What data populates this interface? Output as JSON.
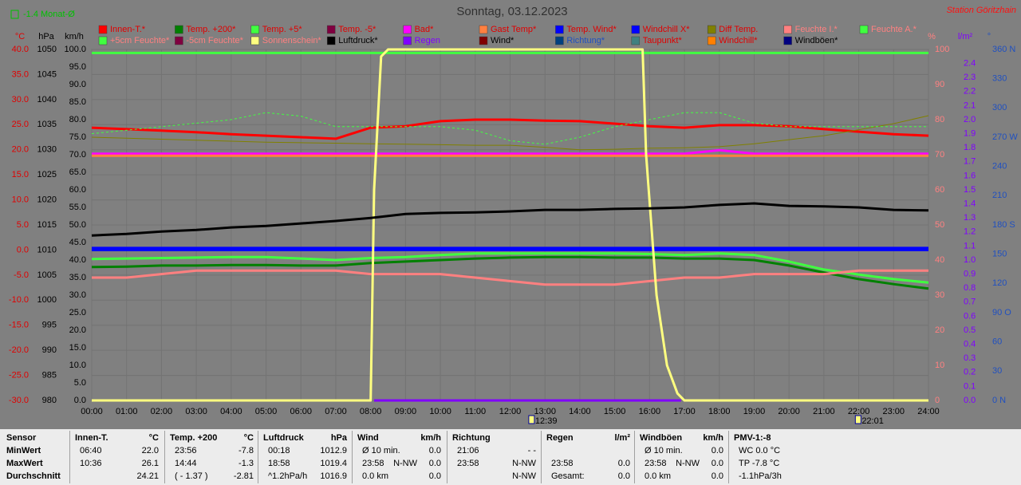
{
  "chart_data": {
    "type": "line",
    "title": "Sonntag, 03.12.2023",
    "station": "Station Göritzhain",
    "month_note": "-1.4 Monat-Ø",
    "grid": true,
    "xlim": [
      0,
      24
    ],
    "xticks": [
      {
        "value": 0,
        "label": "00:00"
      },
      {
        "value": 1,
        "label": "01:00"
      },
      {
        "value": 2,
        "label": "02:00"
      },
      {
        "value": 3,
        "label": "03:00"
      },
      {
        "value": 4,
        "label": "04:00"
      },
      {
        "value": 5,
        "label": "05:00"
      },
      {
        "value": 6,
        "label": "06:00"
      },
      {
        "value": 7,
        "label": "07:00"
      },
      {
        "value": 8,
        "label": "08:00"
      },
      {
        "value": 9,
        "label": "09:00"
      },
      {
        "value": 10,
        "label": "10:00"
      },
      {
        "value": 11,
        "label": "11:00"
      },
      {
        "value": 12,
        "label": "12:00"
      },
      {
        "value": 13,
        "label": "13:00"
      },
      {
        "value": 14,
        "label": "14:00"
      },
      {
        "value": 15,
        "label": "15:00"
      },
      {
        "value": 16,
        "label": "16:00"
      },
      {
        "value": 17,
        "label": "17:00"
      },
      {
        "value": 18,
        "label": "18:00"
      },
      {
        "value": 19,
        "label": "19:00"
      },
      {
        "value": 20,
        "label": "20:00"
      },
      {
        "value": 21,
        "label": "21:00"
      },
      {
        "value": 22,
        "label": "22:00"
      },
      {
        "value": 23,
        "label": "23:00"
      },
      {
        "value": 24,
        "label": "24:00"
      }
    ],
    "ylabel": "°C",
    "ylim": [
      -30,
      40
    ],
    "yticks": [
      {
        "value": 40,
        "label": "40.0"
      },
      {
        "value": 35,
        "label": "35.0"
      },
      {
        "value": 30,
        "label": "30.0"
      },
      {
        "value": 25,
        "label": "25.0"
      },
      {
        "value": 20,
        "label": "20.0"
      },
      {
        "value": 15,
        "label": "15.0"
      },
      {
        "value": 10,
        "label": "10.0"
      },
      {
        "value": 5,
        "label": "5.0"
      },
      {
        "value": 0,
        "label": "0.0"
      },
      {
        "value": -5,
        "label": "-5.0"
      },
      {
        "value": -10,
        "label": "-10.0"
      },
      {
        "value": -15,
        "label": "-15.0"
      },
      {
        "value": -20,
        "label": "-20.0"
      },
      {
        "value": -25,
        "label": "-25.0"
      },
      {
        "value": -30,
        "label": "-30.0"
      }
    ],
    "y2label": "hPa",
    "y2lim": [
      980,
      1050
    ],
    "y2ticks": [
      1050,
      1045,
      1040,
      1035,
      1030,
      1025,
      1020,
      1015,
      1010,
      1005,
      1000,
      995,
      990,
      985,
      980
    ],
    "y3label": "km/h",
    "y3lim": [
      0,
      100
    ],
    "y3ticks": [
      {
        "value": 100,
        "label": "100.0"
      },
      {
        "value": 95,
        "label": "95.0"
      },
      {
        "value": 90,
        "label": "90.0"
      },
      {
        "value": 85,
        "label": "85.0"
      },
      {
        "value": 80,
        "label": "80.0"
      },
      {
        "value": 75,
        "label": "75.0"
      },
      {
        "value": 70,
        "label": "70.0"
      },
      {
        "value": 65,
        "label": "65.0"
      },
      {
        "value": 60,
        "label": "60.0"
      },
      {
        "value": 55,
        "label": "55.0"
      },
      {
        "value": 50,
        "label": "50.0"
      },
      {
        "value": 45,
        "label": "45.0"
      },
      {
        "value": 40,
        "label": "40.0"
      },
      {
        "value": 35,
        "label": "35.0"
      },
      {
        "value": 30,
        "label": "30.0"
      },
      {
        "value": 25,
        "label": "25.0"
      },
      {
        "value": 20,
        "label": "20.0"
      },
      {
        "value": 15,
        "label": "15.0"
      },
      {
        "value": 10,
        "label": "10.0"
      },
      {
        "value": 5,
        "label": "5.0"
      },
      {
        "value": 0,
        "label": "0.0"
      }
    ],
    "y4label": "%",
    "y4lim": [
      0,
      100
    ],
    "y4ticks": [
      100,
      90,
      80,
      70,
      60,
      50,
      40,
      30,
      20,
      10,
      0
    ],
    "y5label": "l/m²",
    "y5lim": [
      0,
      2.5
    ],
    "y5ticks": [
      2.4,
      2.3,
      2.2,
      2.1,
      {
        "value": 2,
        "label": "2.0"
      },
      1.9,
      1.8,
      1.7,
      1.6,
      1.5,
      1.4,
      1.3,
      1.2,
      1.1,
      {
        "value": 1,
        "label": "1.0"
      },
      0.9,
      0.8,
      0.7,
      0.6,
      0.5,
      0.4,
      0.3,
      0.2,
      0.1,
      {
        "value": 0,
        "label": "0.0"
      }
    ],
    "y6label": "°",
    "y6lim": [
      0,
      360
    ],
    "y6ticks": [
      {
        "value": 360,
        "label": "360 N"
      },
      330,
      300,
      {
        "value": 270,
        "label": "270 W"
      },
      240,
      210,
      {
        "value": 180,
        "label": "180 S"
      },
      150,
      120,
      {
        "value": 90,
        "label": "90 O"
      },
      60,
      30,
      {
        "value": 0,
        "label": "0 N"
      }
    ],
    "x": [
      0,
      1,
      2,
      3,
      4,
      5,
      6,
      7,
      8,
      9,
      10,
      11,
      12,
      13,
      14,
      15,
      16,
      17,
      18,
      19,
      20,
      21,
      22,
      23,
      24
    ],
    "series": [
      {
        "name": "Innen-T.*",
        "color": "#ff0000",
        "axis": "y",
        "values": [
          24.4,
          24.1,
          23.8,
          23.5,
          23.1,
          22.8,
          22.5,
          22.2,
          24.4,
          24.7,
          25.7,
          26.0,
          26.0,
          25.8,
          25.7,
          25.2,
          24.7,
          24.4,
          24.9,
          24.9,
          24.7,
          24.1,
          23.6,
          23.1,
          22.8
        ]
      },
      {
        "name": "Temp. +200*",
        "color": "#008000",
        "axis": "y",
        "values": [
          -3.4,
          -3.3,
          -3.1,
          -3.1,
          -3.0,
          -3.0,
          -3.1,
          -3.1,
          -2.6,
          -2.3,
          -2.0,
          -1.7,
          -1.5,
          -1.4,
          -1.4,
          -1.5,
          -1.5,
          -1.7,
          -1.7,
          -2.0,
          -3.1,
          -4.5,
          -5.8,
          -6.8,
          -7.7
        ]
      },
      {
        "name": "Temp. +5*",
        "color": "#40ff40",
        "axis": "y",
        "values": [
          -1.8,
          -1.7,
          -1.6,
          -1.5,
          -1.4,
          -1.4,
          -1.7,
          -2.0,
          -1.6,
          -1.4,
          -1.0,
          -0.7,
          -0.7,
          -0.7,
          -0.7,
          -0.7,
          -0.8,
          -1.0,
          -0.7,
          -1.0,
          -2.3,
          -3.9,
          -4.9,
          -5.8,
          -6.5
        ]
      },
      {
        "name": "Temp. -5*",
        "color": "#800040",
        "axis": "y"
      },
      {
        "name": "Bad*",
        "color": "#ff00ff",
        "axis": "y",
        "values": [
          19.2,
          19.2,
          19.2,
          19.2,
          19.2,
          19.2,
          19.2,
          19.2,
          19.2,
          19.2,
          19.2,
          19.2,
          19.2,
          19.2,
          19.2,
          19.2,
          19.2,
          19.2,
          19.9,
          19.2,
          19.2,
          19.2,
          19.2,
          19.2,
          19.2
        ]
      },
      {
        "name": "Gast Temp*",
        "color": "#ff8040",
        "axis": "y",
        "values": [
          18.8,
          18.8,
          18.8,
          18.8,
          18.8,
          18.8,
          18.8,
          18.8,
          18.8,
          18.8,
          18.8,
          18.8,
          18.8,
          18.8,
          18.8,
          18.8,
          18.8,
          18.8,
          18.8,
          18.8,
          18.8,
          18.8,
          18.8,
          18.8,
          18.8
        ]
      },
      {
        "name": "Temp. Wind*",
        "color": "#0000ff",
        "axis": "y",
        "values": [
          0,
          0,
          0,
          0,
          0,
          0,
          0,
          0,
          0,
          0,
          0,
          0,
          0,
          0,
          0,
          0,
          0,
          0,
          0,
          0,
          0,
          0,
          0,
          0,
          0
        ]
      },
      {
        "name": "Windchill X*",
        "color": "#0000ff",
        "axis": "y",
        "values": [
          0.4,
          0.4,
          0.4,
          0.4,
          0.4,
          0.4,
          0.4,
          0.4,
          0.4,
          0.4,
          0.4,
          0.4,
          0.4,
          0.4,
          0.4,
          0.4,
          0.4,
          0.4,
          0.4,
          0.4,
          0.4,
          0.4,
          0.4,
          0.4,
          0.4
        ]
      },
      {
        "name": "Diff Temp.",
        "color": "#808000",
        "axis": "y",
        "values": [
          22.5,
          22.3,
          22.1,
          21.9,
          21.7,
          21.5,
          21.4,
          21.3,
          21.2,
          21.1,
          21.0,
          20.9,
          20.9,
          20.5,
          20.0,
          20.1,
          20.3,
          20.4,
          20.6,
          21.2,
          22.0,
          22.8,
          24.0,
          25.2,
          26.8
        ]
      },
      {
        "name": "Feuchte I.*",
        "color": "#ff8080",
        "axis": "y4",
        "values": [
          35,
          35,
          36,
          37,
          37,
          37,
          37,
          37,
          36,
          36,
          36,
          35,
          34,
          33,
          33,
          33,
          34,
          35,
          35,
          36,
          36,
          36,
          37,
          37,
          37
        ]
      },
      {
        "name": "Feuchte A.*",
        "color": "#40ff40",
        "axis": "y4",
        "values": [
          99,
          99,
          99,
          99,
          99,
          99,
          99,
          99,
          99,
          99,
          99,
          99,
          99,
          99,
          99,
          99,
          99,
          99,
          99,
          99,
          99,
          99,
          99,
          99,
          99
        ]
      },
      {
        "name": "+5cm Feuchte*",
        "color": "#40ff40",
        "axis": "y4",
        "dash": true,
        "values": [
          76,
          77,
          78,
          79,
          80,
          82,
          81,
          78,
          78,
          78,
          78,
          77,
          74,
          73,
          75,
          78,
          80,
          82,
          82,
          79,
          78,
          78,
          78,
          78,
          78
        ]
      },
      {
        "name": "-5cm Feuchte*",
        "color": "#800040",
        "axis": "y4"
      },
      {
        "name": "Sonnenschein*",
        "color": "#ffff80",
        "axis": "y4",
        "x": [
          0,
          8.0,
          8.1,
          8.3,
          8.5,
          15.8,
          15.9,
          16.2,
          16.5,
          16.8,
          17.0,
          24
        ],
        "values": [
          0,
          0,
          60,
          98,
          100,
          100,
          70,
          30,
          10,
          2,
          0,
          0
        ]
      },
      {
        "name": "Luftdruck*",
        "color": "#000000",
        "axis": "y2",
        "values": [
          1012.9,
          1013.2,
          1013.7,
          1014.0,
          1014.5,
          1014.8,
          1015.3,
          1015.8,
          1016.4,
          1017.2,
          1017.4,
          1017.5,
          1017.7,
          1018.0,
          1018.0,
          1018.2,
          1018.3,
          1018.5,
          1019.0,
          1019.3,
          1018.8,
          1018.7,
          1018.5,
          1018.0,
          1017.9
        ]
      },
      {
        "name": "Regen",
        "color": "#8000ff",
        "axis": "y5",
        "x": [
          8.1,
          16.9
        ],
        "values": [
          0,
          0
        ]
      },
      {
        "name": "Wind*",
        "color": "#800000",
        "axis": "y3"
      },
      {
        "name": "Richtung*",
        "color": "#004080",
        "axis": "y6"
      },
      {
        "name": "Taupunkt*",
        "color": "#408080",
        "axis": "y"
      },
      {
        "name": "Windchill*",
        "color": "#ff8000",
        "axis": "y"
      },
      {
        "name": "Windböen*",
        "color": "#000080",
        "axis": "y3"
      }
    ],
    "annotations": [
      {
        "x": 12.65,
        "label": "12:39"
      },
      {
        "x": 22.017,
        "label": "22:01"
      }
    ]
  },
  "table": {
    "row_labels": [
      "Sensor",
      "MinWert",
      "MaxWert",
      "Durchschnitt"
    ],
    "columns": [
      {
        "title": "Innen-T.",
        "unit": "°C",
        "rows": [
          {
            "l": "06:40",
            "r": "22.0"
          },
          {
            "l": "10:36",
            "r": "26.1"
          },
          {
            "r": "24.21"
          }
        ]
      },
      {
        "title": "Temp. +200",
        "unit": "°C",
        "rows": [
          {
            "l": "23:56",
            "r": "-7.8"
          },
          {
            "l": "14:44",
            "r": "-1.3"
          },
          {
            "l": "( - 1.37 )",
            "r": "-2.81"
          }
        ]
      },
      {
        "title": "Luftdruck",
        "unit": "hPa",
        "rows": [
          {
            "l": "00:18",
            "r": "1012.9"
          },
          {
            "l": "18:58",
            "r": "1019.4"
          },
          {
            "l": "^1.2hPa/h",
            "r": "1016.9"
          }
        ]
      },
      {
        "title": "Wind",
        "unit": "km/h",
        "rows": [
          {
            "l": "Ø 10 min.",
            "r": "0.0"
          },
          {
            "l": "23:58",
            "m": "N-NW",
            "r": "0.0"
          },
          {
            "l": "0.0 km",
            "r": "0.0"
          }
        ]
      },
      {
        "title": "Richtung",
        "rows": [
          {
            "l": "21:06",
            "r": "- -"
          },
          {
            "l": "23:58",
            "r": "N-NW"
          },
          {
            "r": "N-NW"
          }
        ]
      },
      {
        "title": "Regen",
        "unit": "l/m²",
        "rows": [
          {},
          {
            "l": "23:58",
            "r": "0.0"
          },
          {
            "l": "Gesamt:",
            "r": "0.0"
          }
        ]
      },
      {
        "title": "Windböen",
        "unit": "km/h",
        "rows": [
          {
            "l": "Ø 10 min.",
            "r": "0.0"
          },
          {
            "l": "23:58",
            "m": "N-NW",
            "r": "0.0"
          },
          {
            "l": "0.0 km",
            "r": "0.0"
          }
        ]
      },
      {
        "title": "PMV-1:-8",
        "rows": [
          {
            "l": "WC 0.0 °C"
          },
          {
            "l": "TP -7.8 °C"
          },
          {
            "l": "-1.1hPa/3h"
          }
        ]
      }
    ]
  }
}
